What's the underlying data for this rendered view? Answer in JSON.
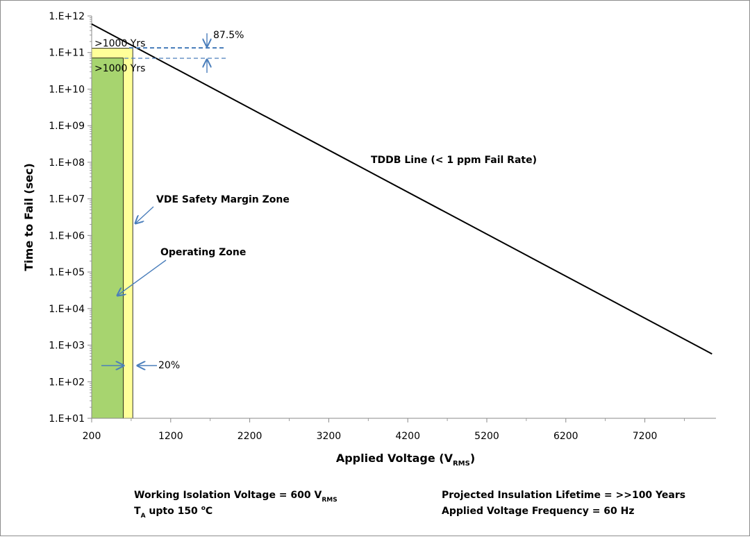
{
  "chart_data": {
    "type": "line",
    "title": "",
    "xlabel": "Applied Voltage (V",
    "xlabel_sub": "RMS",
    "xlabel_close": ")",
    "ylabel": "Time to Fail (sec)",
    "xlim": [
      200,
      8100
    ],
    "ylim_exp": [
      1,
      12
    ],
    "x_ticks": [
      200,
      1200,
      2200,
      3200,
      4200,
      5200,
      6200,
      7200
    ],
    "y_ticks": [
      "1.E+01",
      "1.E+02",
      "1.E+03",
      "1.E+04",
      "1.E+05",
      "1.E+06",
      "1.E+07",
      "1.E+08",
      "1.E+09",
      "1.E+10",
      "1.E+11",
      "1.E+12"
    ],
    "series": [
      {
        "name": "TDDB Line (< 1 ppm Fail Rate)",
        "x": [
          200,
          8050
        ],
        "log10_y": [
          11.78,
          2.76
        ]
      }
    ],
    "zones": [
      {
        "name": "Operating Zone",
        "x_range": [
          200,
          600
        ],
        "log10_top": 10.85,
        "color": "#a7d46f"
      },
      {
        "name": "VDE Safety Margin Zone",
        "x_range": [
          200,
          720
        ],
        "log10_top": 11.12,
        "color": "#ffff99"
      }
    ],
    "annotations": {
      "tddb_label": "TDDB Line (< 1 ppm Fail Rate)",
      "vde_label": "VDE Safety Margin Zone",
      "op_label": "Operating  Zone",
      "yrs_upper": ">1000 Yrs",
      "yrs_lower": ">1000 Yrs",
      "pct_top": "87.5%",
      "pct_bottom": "20%"
    }
  },
  "footer": {
    "working_voltage": "Working Isolation Voltage = 600 V",
    "working_voltage_sub": "RMS",
    "ta_prefix": "T",
    "ta_sub": "A",
    "ta_rest": "  upto 150 ",
    "ta_sup": "o",
    "ta_unit": "C",
    "lifetime": "Projected Insulation Lifetime =  >>100 Years",
    "frequency": "Applied Voltage Frequency = 60 Hz"
  },
  "colors": {
    "operating": "#a7d46f",
    "vde": "#ffff99",
    "annotation_blue": "#4a7ebb",
    "line": "#000000"
  }
}
